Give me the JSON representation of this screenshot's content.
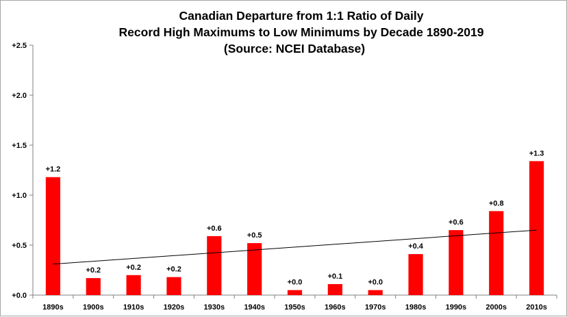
{
  "chart_data": {
    "type": "bar",
    "title_lines": [
      "Canadian  Departure  from 1:1 Ratio of Daily",
      "Record High Maximums  to Low Minimums  by Decade 1890-2019",
      "(Source: NCEI Database)"
    ],
    "categories": [
      "1890s",
      "1900s",
      "1910s",
      "1920s",
      "1930s",
      "1940s",
      "1950s",
      "1960s",
      "1970s",
      "1980s",
      "1990s",
      "2000s",
      "2010s"
    ],
    "values": [
      1.18,
      0.17,
      0.2,
      0.18,
      0.59,
      0.52,
      0.05,
      0.11,
      0.05,
      0.41,
      0.65,
      0.84,
      1.34
    ],
    "data_labels": [
      "+1.2",
      "+0.2",
      "+0.2",
      "+0.2",
      "+0.6",
      "+0.5",
      "+0.0",
      "+0.1",
      "+0.0",
      "+0.4",
      "+0.6",
      "+0.8",
      "+1.3"
    ],
    "y_ticks": [
      0.0,
      0.5,
      1.0,
      1.5,
      2.0,
      2.5
    ],
    "y_tick_labels": [
      "+0.0",
      "+0.5",
      "+1.0",
      "+1.5",
      "+2.0",
      "+2.5"
    ],
    "ylim": [
      0,
      2.5
    ],
    "xlabel": "",
    "ylabel": "",
    "grid": false,
    "legend": "none",
    "trendline": {
      "type": "linear",
      "start_value": 0.31,
      "end_value": 0.65,
      "color": "#000000"
    },
    "bar_color": "#ff0000"
  }
}
